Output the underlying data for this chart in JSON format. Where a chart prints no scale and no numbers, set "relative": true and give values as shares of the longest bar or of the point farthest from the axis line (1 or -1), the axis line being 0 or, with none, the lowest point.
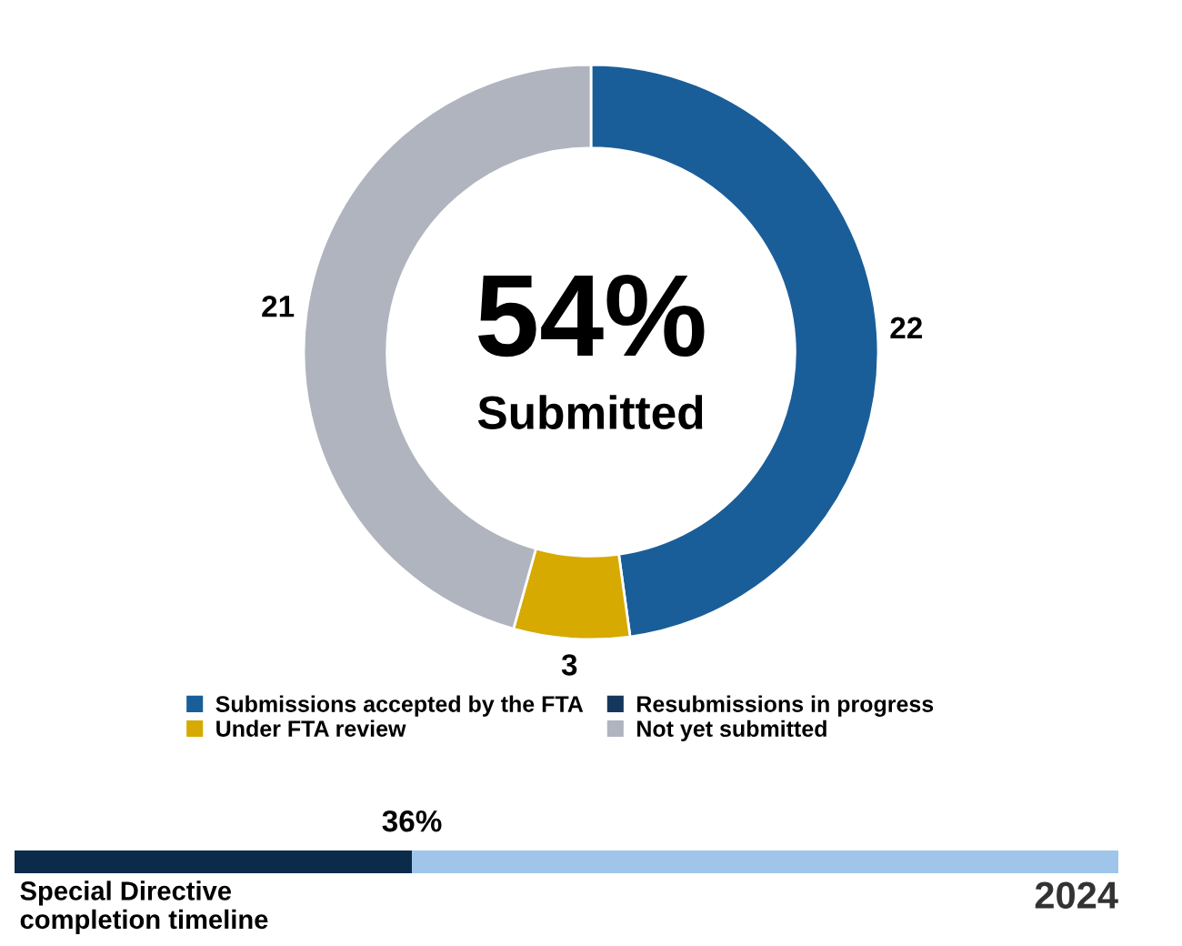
{
  "chart_data": [
    {
      "type": "donut",
      "categories": [
        "Submissions accepted by the FTA",
        "Resubmissions in progress",
        "Under FTA review",
        "Not yet submitted"
      ],
      "values": [
        22,
        0,
        3,
        21
      ],
      "colors": [
        "#1a5e99",
        "#16375c",
        "#d6aa00",
        "#b0b4bf"
      ],
      "value_labels": [
        "22",
        null,
        "3",
        "21"
      ],
      "annotations": [
        "54%",
        "Submitted"
      ],
      "legend": "bottom"
    },
    {
      "type": "bar",
      "orientation": "horizontal",
      "stacked": true,
      "relative": true,
      "categories": [
        null
      ],
      "series": [
        {
          "color": "#0c2b4b",
          "values": [
            0.36
          ]
        },
        {
          "color": "#a0c5ea",
          "values": [
            0.64
          ]
        }
      ],
      "annotations": [
        "36%",
        "Special Directive\ncompletion timeline",
        "2024"
      ]
    }
  ]
}
